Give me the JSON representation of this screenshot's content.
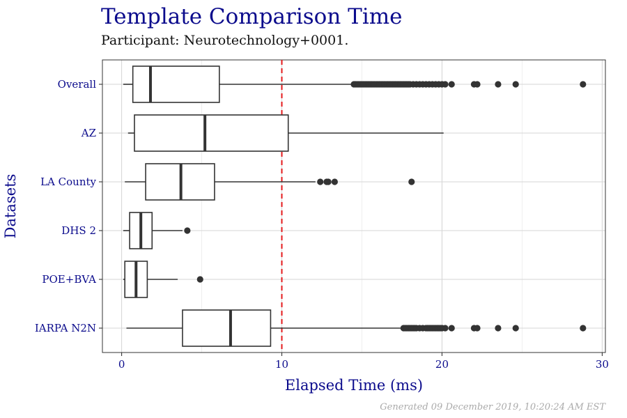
{
  "chart_data": {
    "type": "box",
    "title": "Template Comparison Time",
    "subtitle": "Participant: Neurotechnology+0001.",
    "xlabel": "Elapsed Time (ms)",
    "ylabel": "Datasets",
    "caption": "Generated 09 December 2019, 10:20:24 AM EST",
    "xlim": [
      -1.2,
      30.2
    ],
    "xticks": [
      0,
      10,
      20,
      30
    ],
    "xtick_labels": [
      "0",
      "10",
      "20",
      "30"
    ],
    "reference_line": {
      "x": 10,
      "color": "#e41a1c",
      "style": "dashed"
    },
    "grid": true,
    "categories": [
      "Overall",
      "AZ",
      "LA County",
      "DHS 2",
      "POE+BVA",
      "IARPA N2N"
    ],
    "boxes": [
      {
        "label": "Overall",
        "whisker_low": 0.1,
        "q1": 0.7,
        "median": 1.8,
        "q3": 6.1,
        "whisker_high": 14.4,
        "outliers": [
          14.5,
          14.6,
          14.7,
          14.8,
          14.9,
          15.0,
          15.1,
          15.2,
          15.3,
          15.4,
          15.5,
          15.6,
          15.7,
          15.8,
          15.9,
          16.0,
          16.1,
          16.2,
          16.3,
          16.4,
          16.5,
          16.6,
          16.7,
          16.8,
          16.9,
          17.0,
          17.1,
          17.2,
          17.3,
          17.4,
          17.5,
          17.6,
          17.7,
          17.8,
          17.9,
          18.0,
          18.2,
          18.4,
          18.6,
          18.8,
          19.0,
          19.2,
          19.4,
          19.6,
          19.8,
          20.0,
          20.2,
          20.6,
          22.0,
          22.2,
          23.5,
          24.6,
          28.8
        ]
      },
      {
        "label": "AZ",
        "whisker_low": 0.4,
        "q1": 0.8,
        "median": 5.2,
        "q3": 10.4,
        "whisker_high": 20.1,
        "outliers": []
      },
      {
        "label": "LA County",
        "whisker_low": 0.2,
        "q1": 1.5,
        "median": 3.7,
        "q3": 5.8,
        "whisker_high": 12.1,
        "outliers": [
          12.4,
          12.8,
          12.9,
          13.3,
          18.1
        ]
      },
      {
        "label": "DHS 2",
        "whisker_low": 0.1,
        "q1": 0.5,
        "median": 1.2,
        "q3": 1.9,
        "whisker_high": 3.8,
        "outliers": [
          4.1
        ]
      },
      {
        "label": "POE+BVA",
        "whisker_low": 0.1,
        "q1": 0.2,
        "median": 0.9,
        "q3": 1.6,
        "whisker_high": 3.5,
        "outliers": [
          4.9
        ]
      },
      {
        "label": "IARPA N2N",
        "whisker_low": 0.3,
        "q1": 3.8,
        "median": 6.8,
        "q3": 9.3,
        "whisker_high": 17.5,
        "outliers": [
          17.6,
          17.7,
          17.8,
          17.9,
          18.0,
          18.1,
          18.2,
          18.3,
          18.4,
          18.6,
          18.8,
          19.0,
          19.1,
          19.2,
          19.3,
          19.4,
          19.5,
          19.6,
          19.7,
          19.8,
          19.9,
          20.0,
          20.2,
          20.6,
          22.0,
          22.2,
          23.5,
          24.6,
          28.8
        ]
      }
    ]
  }
}
